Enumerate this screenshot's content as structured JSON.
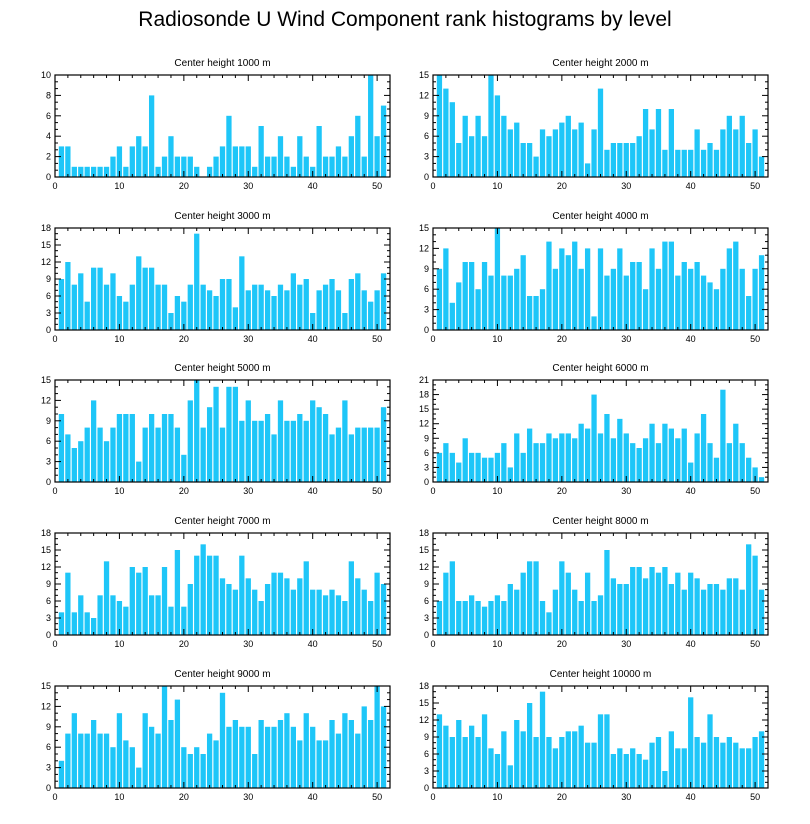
{
  "title": "Radiosonde U Wind Component rank histograms by level",
  "bar_color": "#1ec6f8",
  "chart_data": [
    {
      "type": "bar",
      "title": "Center height 1000 m",
      "xlim": [
        0,
        52
      ],
      "ylim": [
        0,
        10
      ],
      "xticks": [
        0,
        10,
        20,
        30,
        40,
        50
      ],
      "yticks": [
        0,
        2,
        4,
        6,
        8,
        10
      ],
      "x": [
        1,
        2,
        3,
        4,
        5,
        6,
        7,
        8,
        9,
        10,
        11,
        12,
        13,
        14,
        15,
        16,
        17,
        18,
        19,
        20,
        21,
        22,
        23,
        24,
        25,
        26,
        27,
        28,
        29,
        30,
        31,
        32,
        33,
        34,
        35,
        36,
        37,
        38,
        39,
        40,
        41,
        42,
        43,
        44,
        45,
        46,
        47,
        48,
        49,
        50,
        51
      ],
      "values": [
        3,
        3,
        1,
        1,
        1,
        1,
        1,
        1,
        2,
        3,
        1,
        3,
        4,
        3,
        8,
        1,
        2,
        4,
        2,
        2,
        2,
        1,
        0,
        1,
        2,
        3,
        6,
        3,
        3,
        3,
        1,
        5,
        2,
        2,
        4,
        2,
        1,
        4,
        2,
        1,
        5,
        2,
        2,
        3,
        2,
        4,
        6,
        2,
        10,
        4,
        7
      ]
    },
    {
      "type": "bar",
      "title": "Center height 2000 m",
      "xlim": [
        0,
        52
      ],
      "ylim": [
        0,
        15
      ],
      "xticks": [
        0,
        10,
        20,
        30,
        40,
        50
      ],
      "yticks": [
        0,
        3,
        6,
        9,
        12,
        15
      ],
      "x": [
        1,
        2,
        3,
        4,
        5,
        6,
        7,
        8,
        9,
        10,
        11,
        12,
        13,
        14,
        15,
        16,
        17,
        18,
        19,
        20,
        21,
        22,
        23,
        24,
        25,
        26,
        27,
        28,
        29,
        30,
        31,
        32,
        33,
        34,
        35,
        36,
        37,
        38,
        39,
        40,
        41,
        42,
        43,
        44,
        45,
        46,
        47,
        48,
        49,
        50,
        51
      ],
      "values": [
        15,
        13,
        11,
        5,
        9,
        6,
        9,
        6,
        15,
        12,
        9,
        7,
        8,
        5,
        5,
        3,
        7,
        6,
        7,
        8,
        9,
        7,
        8,
        2,
        7,
        13,
        4,
        5,
        5,
        5,
        5,
        6,
        10,
        7,
        10,
        4,
        10,
        4,
        4,
        4,
        7,
        4,
        5,
        4,
        7,
        9,
        7,
        9,
        5,
        7,
        3
      ]
    },
    {
      "type": "bar",
      "title": "Center height 3000 m",
      "xlim": [
        0,
        52
      ],
      "ylim": [
        0,
        18
      ],
      "xticks": [
        0,
        10,
        20,
        30,
        40,
        50
      ],
      "yticks": [
        0,
        3,
        6,
        9,
        12,
        15,
        18
      ],
      "x": [
        1,
        2,
        3,
        4,
        5,
        6,
        7,
        8,
        9,
        10,
        11,
        12,
        13,
        14,
        15,
        16,
        17,
        18,
        19,
        20,
        21,
        22,
        23,
        24,
        25,
        26,
        27,
        28,
        29,
        30,
        31,
        32,
        33,
        34,
        35,
        36,
        37,
        38,
        39,
        40,
        41,
        42,
        43,
        44,
        45,
        46,
        47,
        48,
        49,
        50,
        51
      ],
      "values": [
        9,
        12,
        8,
        10,
        5,
        11,
        11,
        8,
        10,
        6,
        5,
        8,
        13,
        11,
        11,
        8,
        8,
        3,
        6,
        5,
        8,
        17,
        8,
        7,
        6,
        9,
        9,
        4,
        13,
        7,
        8,
        8,
        7,
        6,
        8,
        7,
        10,
        8,
        9,
        3,
        7,
        8,
        9,
        7,
        3,
        9,
        10,
        7,
        5,
        7,
        10
      ]
    },
    {
      "type": "bar",
      "title": "Center height 4000 m",
      "xlim": [
        0,
        52
      ],
      "ylim": [
        0,
        15
      ],
      "xticks": [
        0,
        10,
        20,
        30,
        40,
        50
      ],
      "yticks": [
        0,
        3,
        6,
        9,
        12,
        15
      ],
      "x": [
        1,
        2,
        3,
        4,
        5,
        6,
        7,
        8,
        9,
        10,
        11,
        12,
        13,
        14,
        15,
        16,
        17,
        18,
        19,
        20,
        21,
        22,
        23,
        24,
        25,
        26,
        27,
        28,
        29,
        30,
        31,
        32,
        33,
        34,
        35,
        36,
        37,
        38,
        39,
        40,
        41,
        42,
        43,
        44,
        45,
        46,
        47,
        48,
        49,
        50,
        51
      ],
      "values": [
        9,
        12,
        4,
        7,
        10,
        10,
        6,
        10,
        8,
        15,
        8,
        8,
        9,
        11,
        5,
        5,
        6,
        13,
        9,
        12,
        11,
        13,
        9,
        12,
        2,
        12,
        8,
        9,
        12,
        8,
        10,
        10,
        6,
        12,
        9,
        13,
        13,
        8,
        10,
        9,
        10,
        8,
        7,
        6,
        9,
        12,
        13,
        9,
        5,
        9,
        11
      ]
    },
    {
      "type": "bar",
      "title": "Center height 5000 m",
      "xlim": [
        0,
        52
      ],
      "ylim": [
        0,
        15
      ],
      "xticks": [
        0,
        10,
        20,
        30,
        40,
        50
      ],
      "yticks": [
        0,
        3,
        6,
        9,
        12,
        15
      ],
      "x": [
        1,
        2,
        3,
        4,
        5,
        6,
        7,
        8,
        9,
        10,
        11,
        12,
        13,
        14,
        15,
        16,
        17,
        18,
        19,
        20,
        21,
        22,
        23,
        24,
        25,
        26,
        27,
        28,
        29,
        30,
        31,
        32,
        33,
        34,
        35,
        36,
        37,
        38,
        39,
        40,
        41,
        42,
        43,
        44,
        45,
        46,
        47,
        48,
        49,
        50,
        51
      ],
      "values": [
        10,
        7,
        5,
        6,
        8,
        12,
        8,
        6,
        8,
        10,
        10,
        10,
        3,
        8,
        10,
        8,
        10,
        10,
        8,
        4,
        12,
        15,
        8,
        11,
        14,
        8,
        14,
        14,
        9,
        12,
        9,
        9,
        10,
        7,
        12,
        9,
        9,
        10,
        9,
        12,
        11,
        10,
        7,
        8,
        12,
        7,
        8,
        8,
        8,
        8,
        11
      ]
    },
    {
      "type": "bar",
      "title": "Center height 6000 m",
      "xlim": [
        0,
        52
      ],
      "ylim": [
        0,
        21
      ],
      "xticks": [
        0,
        10,
        20,
        30,
        40,
        50
      ],
      "yticks": [
        0,
        3,
        6,
        9,
        12,
        15,
        18,
        21
      ],
      "x": [
        1,
        2,
        3,
        4,
        5,
        6,
        7,
        8,
        9,
        10,
        11,
        12,
        13,
        14,
        15,
        16,
        17,
        18,
        19,
        20,
        21,
        22,
        23,
        24,
        25,
        26,
        27,
        28,
        29,
        30,
        31,
        32,
        33,
        34,
        35,
        36,
        37,
        38,
        39,
        40,
        41,
        42,
        43,
        44,
        45,
        46,
        47,
        48,
        49,
        50,
        51
      ],
      "values": [
        6,
        8,
        6,
        4,
        9,
        6,
        6,
        5,
        5,
        6,
        8,
        3,
        10,
        6,
        11,
        8,
        8,
        10,
        9,
        10,
        10,
        9,
        12,
        11,
        18,
        10,
        14,
        9,
        13,
        10,
        8,
        7,
        9,
        12,
        8,
        12,
        11,
        9,
        11,
        4,
        10,
        14,
        8,
        5,
        19,
        8,
        12,
        8,
        5,
        3,
        1
      ]
    },
    {
      "type": "bar",
      "title": "Center height 7000 m",
      "xlim": [
        0,
        52
      ],
      "ylim": [
        0,
        18
      ],
      "xticks": [
        0,
        10,
        20,
        30,
        40,
        50
      ],
      "yticks": [
        0,
        3,
        6,
        9,
        12,
        15,
        18
      ],
      "x": [
        1,
        2,
        3,
        4,
        5,
        6,
        7,
        8,
        9,
        10,
        11,
        12,
        13,
        14,
        15,
        16,
        17,
        18,
        19,
        20,
        21,
        22,
        23,
        24,
        25,
        26,
        27,
        28,
        29,
        30,
        31,
        32,
        33,
        34,
        35,
        36,
        37,
        38,
        39,
        40,
        41,
        42,
        43,
        44,
        45,
        46,
        47,
        48,
        49,
        50,
        51
      ],
      "values": [
        4,
        11,
        4,
        7,
        4,
        3,
        7,
        13,
        7,
        6,
        5,
        12,
        11,
        12,
        7,
        7,
        12,
        5,
        15,
        5,
        9,
        14,
        16,
        14,
        14,
        10,
        9,
        8,
        14,
        10,
        8,
        6,
        9,
        11,
        11,
        10,
        8,
        10,
        13,
        8,
        8,
        7,
        8,
        7,
        6,
        13,
        10,
        8,
        6,
        11,
        9
      ]
    },
    {
      "type": "bar",
      "title": "Center height 8000 m",
      "xlim": [
        0,
        52
      ],
      "ylim": [
        0,
        18
      ],
      "xticks": [
        0,
        10,
        20,
        30,
        40,
        50
      ],
      "yticks": [
        0,
        3,
        6,
        9,
        12,
        15,
        18
      ],
      "x": [
        1,
        2,
        3,
        4,
        5,
        6,
        7,
        8,
        9,
        10,
        11,
        12,
        13,
        14,
        15,
        16,
        17,
        18,
        19,
        20,
        21,
        22,
        23,
        24,
        25,
        26,
        27,
        28,
        29,
        30,
        31,
        32,
        33,
        34,
        35,
        36,
        37,
        38,
        39,
        40,
        41,
        42,
        43,
        44,
        45,
        46,
        47,
        48,
        49,
        50,
        51
      ],
      "values": [
        6,
        11,
        13,
        6,
        6,
        7,
        6,
        5,
        6,
        7,
        6,
        9,
        8,
        11,
        13,
        13,
        6,
        4,
        8,
        13,
        11,
        8,
        6,
        11,
        6,
        7,
        15,
        10,
        9,
        9,
        12,
        12,
        10,
        12,
        11,
        12,
        9,
        11,
        8,
        11,
        10,
        8,
        9,
        9,
        8,
        10,
        10,
        8,
        16,
        14,
        8
      ]
    },
    {
      "type": "bar",
      "title": "Center height 9000 m",
      "xlim": [
        0,
        52
      ],
      "ylim": [
        0,
        15
      ],
      "xticks": [
        0,
        10,
        20,
        30,
        40,
        50
      ],
      "yticks": [
        0,
        3,
        6,
        9,
        12,
        15
      ],
      "x": [
        1,
        2,
        3,
        4,
        5,
        6,
        7,
        8,
        9,
        10,
        11,
        12,
        13,
        14,
        15,
        16,
        17,
        18,
        19,
        20,
        21,
        22,
        23,
        24,
        25,
        26,
        27,
        28,
        29,
        30,
        31,
        32,
        33,
        34,
        35,
        36,
        37,
        38,
        39,
        40,
        41,
        42,
        43,
        44,
        45,
        46,
        47,
        48,
        49,
        50,
        51
      ],
      "values": [
        4,
        8,
        11,
        8,
        8,
        10,
        8,
        8,
        6,
        11,
        7,
        6,
        3,
        11,
        9,
        8,
        15,
        10,
        13,
        6,
        5,
        6,
        5,
        8,
        7,
        14,
        9,
        10,
        9,
        9,
        5,
        10,
        9,
        9,
        10,
        11,
        9,
        7,
        11,
        9,
        7,
        7,
        10,
        8,
        11,
        10,
        8,
        12,
        10,
        15,
        12
      ]
    },
    {
      "type": "bar",
      "title": "Center height 10000 m",
      "xlim": [
        0,
        52
      ],
      "ylim": [
        0,
        18
      ],
      "xticks": [
        0,
        10,
        20,
        30,
        40,
        50
      ],
      "yticks": [
        0,
        3,
        6,
        9,
        12,
        15,
        18
      ],
      "x": [
        1,
        2,
        3,
        4,
        5,
        6,
        7,
        8,
        9,
        10,
        11,
        12,
        13,
        14,
        15,
        16,
        17,
        18,
        19,
        20,
        21,
        22,
        23,
        24,
        25,
        26,
        27,
        28,
        29,
        30,
        31,
        32,
        33,
        34,
        35,
        36,
        37,
        38,
        39,
        40,
        41,
        42,
        43,
        44,
        45,
        46,
        47,
        48,
        49,
        50,
        51
      ],
      "values": [
        13,
        11,
        9,
        12,
        9,
        11,
        9,
        13,
        7,
        6,
        10,
        4,
        12,
        10,
        15,
        9,
        17,
        9,
        7,
        9,
        10,
        10,
        11,
        8,
        8,
        13,
        13,
        6,
        7,
        6,
        7,
        6,
        5,
        8,
        9,
        3,
        10,
        7,
        7,
        16,
        9,
        8,
        13,
        9,
        8,
        9,
        8,
        7,
        7,
        9,
        10
      ]
    }
  ]
}
